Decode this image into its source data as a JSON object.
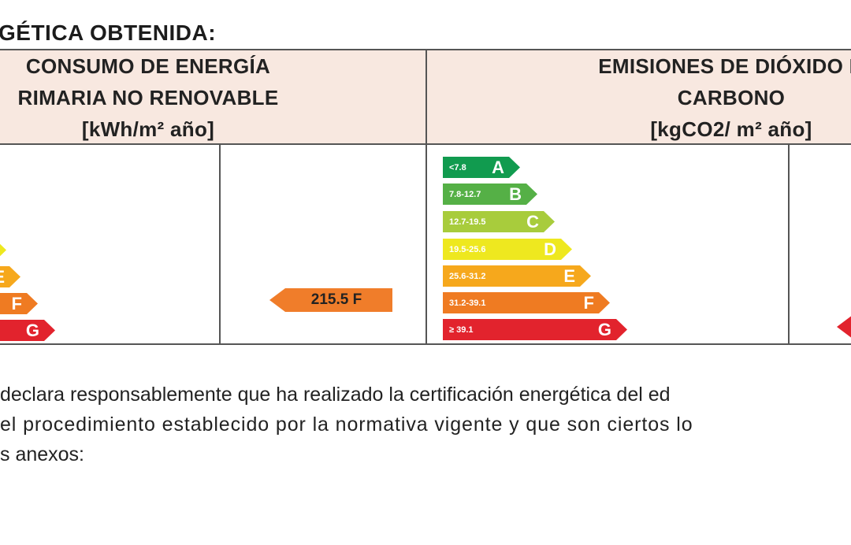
{
  "heading": "GÉTICA OBTENIDA:",
  "consumption": {
    "title_lines": [
      "CONSUMO DE ENERGÍA",
      "RIMARIA NO RENOVABLE",
      "[kWh/m² año]"
    ],
    "visible_scale": [
      {
        "letter": "E",
        "color": "#f6a81c"
      },
      {
        "letter": "F",
        "color": "#ef7b22"
      },
      {
        "letter": "G",
        "color": "#e2232d"
      }
    ],
    "rating": "215.5 F",
    "rating_color": "#f07d2a"
  },
  "emissions": {
    "title_lines": [
      "EMISIONES DE DIÓXIDO D",
      "CARBONO",
      "[kgCO2/ m² año]"
    ],
    "scale": [
      {
        "range": "<7.8",
        "letter": "A",
        "color": "#119b4f"
      },
      {
        "range": "7.8-12.7",
        "letter": "B",
        "color": "#55b046"
      },
      {
        "range": "12.7-19.5",
        "letter": "C",
        "color": "#a8cc3c"
      },
      {
        "range": "19.5-25.6",
        "letter": "D",
        "color": "#eee81f"
      },
      {
        "range": "25.6-31.2",
        "letter": "E",
        "color": "#f6a81c"
      },
      {
        "range": "31.2-39.1",
        "letter": "F",
        "color": "#ef7b22"
      },
      {
        "range": "≥ 39.1",
        "letter": "G",
        "color": "#e2232d"
      }
    ]
  },
  "paragraph": {
    "lines": [
      "declara responsablemente que ha realizado la certificación energética del ed",
      "el procedimiento establecido por la normativa vigente y que son ciertos lo",
      "s anexos:"
    ]
  }
}
